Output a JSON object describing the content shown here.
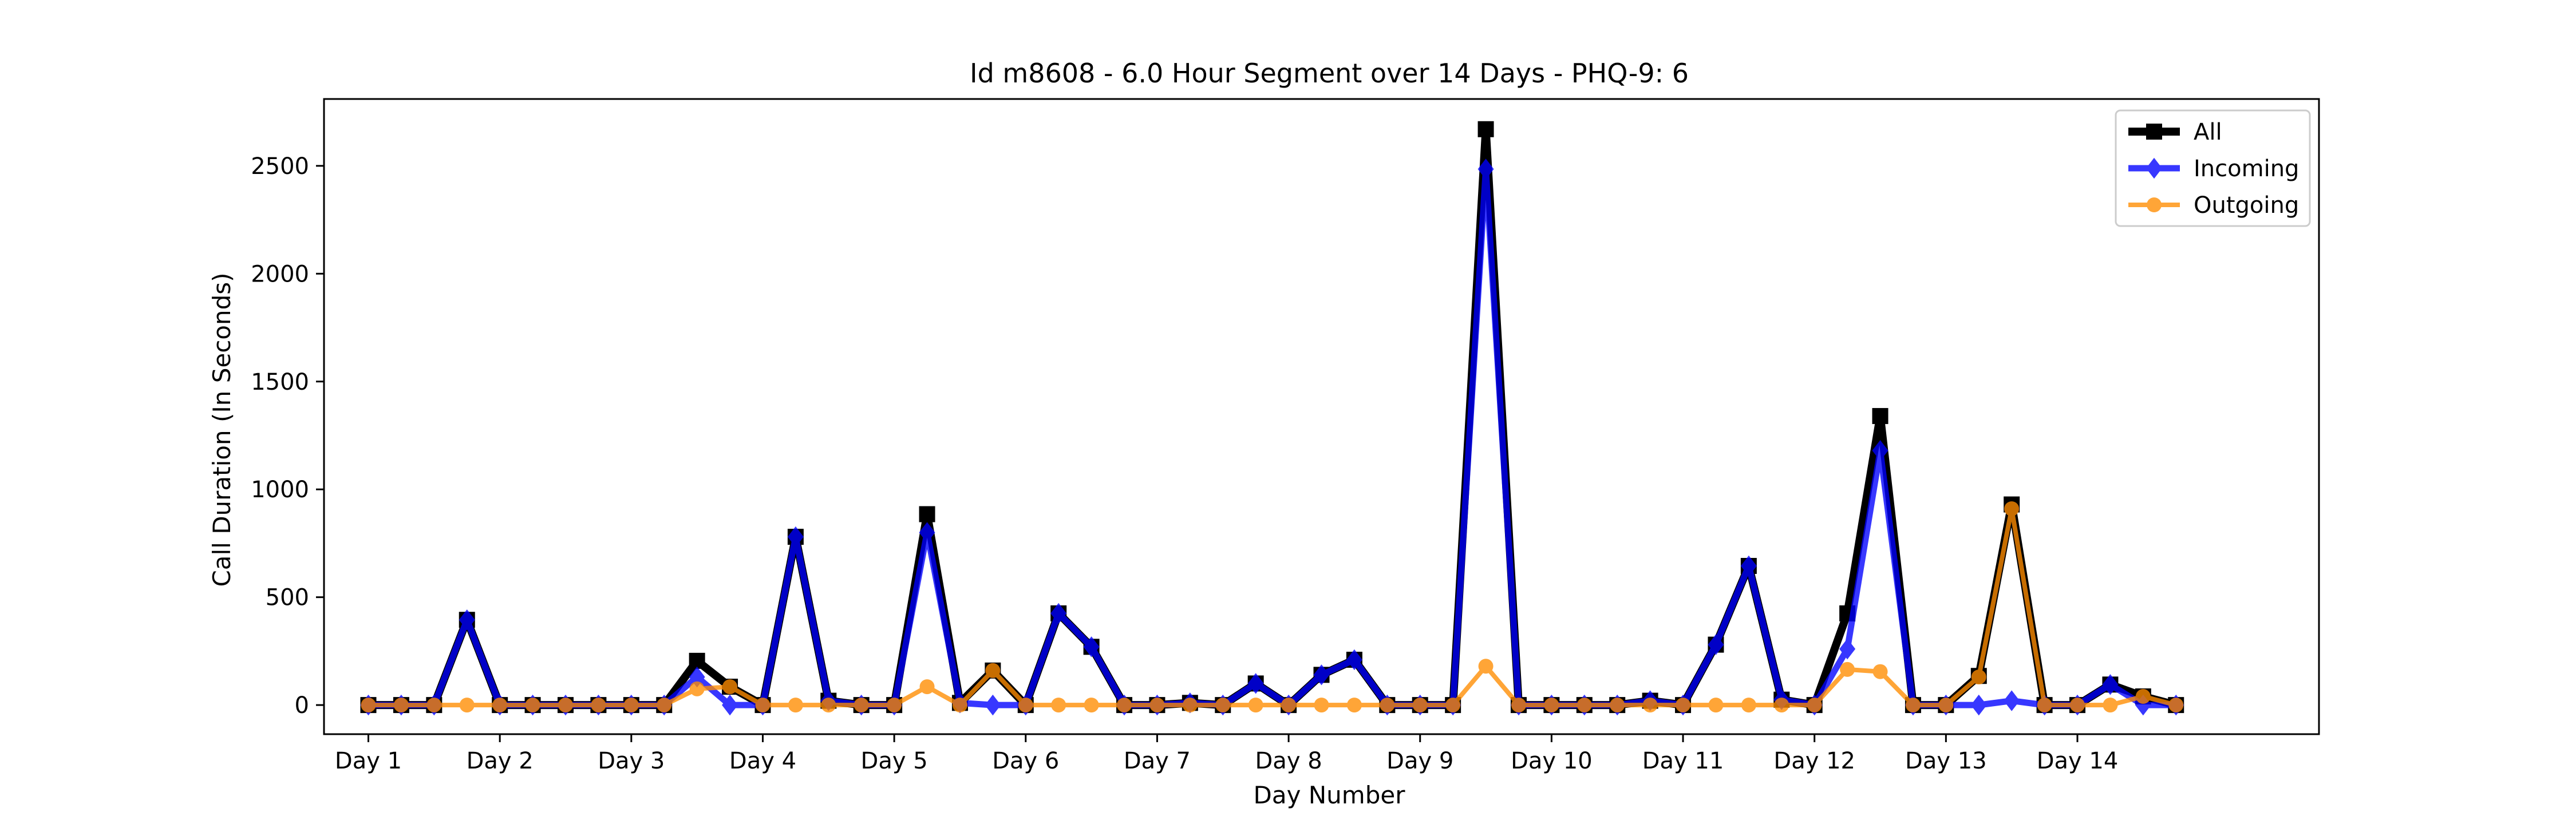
{
  "chart_data": {
    "type": "line",
    "title": "Id m8608 - 6.0 Hour Segment over 14 Days - PHQ-9: 6",
    "xlabel": "Day Number",
    "ylabel": "Call Duration (In Seconds)",
    "x_tick_labels": [
      "Day 1",
      "Day 2",
      "Day 3",
      "Day 4",
      "Day 5",
      "Day 6",
      "Day 7",
      "Day 8",
      "Day 9",
      "Day 10",
      "Day 11",
      "Day 12",
      "Day 13",
      "Day 14"
    ],
    "y_ticks": [
      0,
      500,
      1000,
      1500,
      2000,
      2500
    ],
    "xlim": [
      -1.35,
      59.35
    ],
    "ylim": [
      -135,
      2810
    ],
    "x": [
      0,
      1,
      2,
      3,
      4,
      5,
      6,
      7,
      8,
      9,
      10,
      11,
      12,
      13,
      14,
      15,
      16,
      17,
      18,
      19,
      20,
      21,
      22,
      23,
      24,
      25,
      26,
      27,
      28,
      29,
      30,
      31,
      32,
      33,
      34,
      35,
      36,
      37,
      38,
      39,
      40,
      41,
      42,
      43,
      44,
      45,
      46,
      47,
      48,
      49,
      50,
      51,
      52,
      53,
      54,
      55
    ],
    "legend_position": "upper right",
    "grid": false,
    "series": [
      {
        "name": "All",
        "color": "#000000",
        "marker": "square",
        "values": [
          0,
          0,
          0,
          395,
          0,
          0,
          0,
          0,
          0,
          0,
          205,
          85,
          0,
          780,
          20,
          0,
          0,
          885,
          10,
          160,
          0,
          425,
          270,
          0,
          0,
          10,
          0,
          100,
          0,
          140,
          210,
          0,
          0,
          0,
          2670,
          0,
          0,
          0,
          0,
          20,
          0,
          280,
          645,
          25,
          0,
          425,
          1340,
          0,
          0,
          135,
          930,
          0,
          0,
          95,
          40,
          0
        ]
      },
      {
        "name": "Incoming",
        "color": "#0000ff",
        "marker": "diamond",
        "values": [
          0,
          0,
          0,
          395,
          0,
          0,
          0,
          0,
          0,
          0,
          130,
          0,
          0,
          780,
          20,
          0,
          0,
          800,
          10,
          0,
          0,
          425,
          270,
          0,
          0,
          10,
          0,
          100,
          0,
          140,
          210,
          0,
          0,
          0,
          2485,
          0,
          0,
          0,
          0,
          20,
          0,
          280,
          645,
          25,
          0,
          260,
          1180,
          0,
          0,
          0,
          20,
          0,
          0,
          95,
          0,
          0
        ]
      },
      {
        "name": "Outgoing",
        "color": "#ff8c00",
        "marker": "circle",
        "values": [
          0,
          0,
          0,
          0,
          0,
          0,
          0,
          0,
          0,
          0,
          75,
          85,
          0,
          0,
          0,
          0,
          0,
          85,
          0,
          160,
          0,
          0,
          0,
          0,
          0,
          0,
          0,
          0,
          0,
          0,
          0,
          0,
          0,
          0,
          180,
          0,
          0,
          0,
          0,
          0,
          0,
          0,
          0,
          0,
          0,
          165,
          155,
          0,
          0,
          130,
          910,
          0,
          0,
          0,
          40,
          0
        ]
      }
    ]
  }
}
